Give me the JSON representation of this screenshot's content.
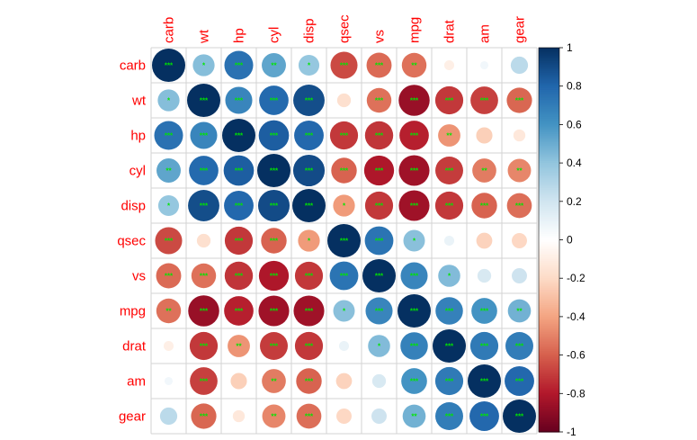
{
  "chart_data": {
    "type": "heatmap",
    "variables": [
      "carb",
      "wt",
      "hp",
      "cyl",
      "disp",
      "qsec",
      "vs",
      "mpg",
      "drat",
      "am",
      "gear"
    ],
    "matrix": [
      [
        1.0,
        0.43,
        0.75,
        0.53,
        0.39,
        -0.66,
        -0.57,
        -0.55,
        -0.09,
        0.06,
        0.27
      ],
      [
        0.43,
        1.0,
        0.66,
        0.78,
        0.89,
        -0.17,
        -0.55,
        -0.87,
        -0.71,
        -0.69,
        -0.58
      ],
      [
        0.75,
        0.66,
        1.0,
        0.83,
        0.79,
        -0.71,
        -0.72,
        -0.78,
        -0.45,
        -0.24,
        -0.13
      ],
      [
        0.53,
        0.78,
        0.83,
        1.0,
        0.9,
        -0.59,
        -0.81,
        -0.85,
        -0.7,
        -0.52,
        -0.49
      ],
      [
        0.39,
        0.89,
        0.79,
        0.9,
        1.0,
        -0.43,
        -0.71,
        -0.85,
        -0.71,
        -0.59,
        -0.56
      ],
      [
        -0.66,
        -0.17,
        -0.71,
        -0.59,
        -0.43,
        1.0,
        0.74,
        0.42,
        0.09,
        -0.23,
        -0.21
      ],
      [
        -0.57,
        -0.55,
        -0.72,
        -0.81,
        -0.71,
        0.74,
        1.0,
        0.66,
        0.44,
        0.17,
        0.21
      ],
      [
        -0.55,
        -0.87,
        -0.78,
        -0.85,
        -0.85,
        0.42,
        0.66,
        1.0,
        0.68,
        0.6,
        0.48
      ],
      [
        -0.09,
        -0.71,
        -0.45,
        -0.7,
        -0.71,
        0.09,
        0.44,
        0.68,
        1.0,
        0.71,
        0.7
      ],
      [
        0.06,
        -0.69,
        -0.24,
        -0.52,
        -0.59,
        -0.23,
        0.17,
        0.6,
        0.71,
        1.0,
        0.79
      ],
      [
        0.27,
        -0.58,
        -0.13,
        -0.49,
        -0.56,
        -0.21,
        0.21,
        0.48,
        0.7,
        0.79,
        1.0
      ]
    ],
    "significance": [
      [
        "***",
        "*",
        "***",
        "**",
        "*",
        "***",
        "***",
        "**",
        "",
        "",
        ""
      ],
      [
        "*",
        "***",
        "***",
        "***",
        "***",
        "",
        "***",
        "***",
        "***",
        "***",
        "***"
      ],
      [
        "***",
        "***",
        "***",
        "***",
        "***",
        "***",
        "***",
        "***",
        "**",
        "",
        ""
      ],
      [
        "**",
        "***",
        "***",
        "***",
        "***",
        "***",
        "***",
        "***",
        "***",
        "**",
        "**"
      ],
      [
        "*",
        "***",
        "***",
        "***",
        "***",
        "*",
        "***",
        "***",
        "***",
        "***",
        "***"
      ],
      [
        "***",
        "",
        "***",
        "***",
        "*",
        "***",
        "***",
        "*",
        "",
        "",
        ""
      ],
      [
        "***",
        "***",
        "***",
        "***",
        "***",
        "***",
        "***",
        "***",
        "*",
        "",
        ""
      ],
      [
        "**",
        "***",
        "***",
        "***",
        "***",
        "*",
        "***",
        "***",
        "***",
        "***",
        "**"
      ],
      [
        "",
        "***",
        "**",
        "***",
        "***",
        "",
        "*",
        "***",
        "***",
        "***",
        "***"
      ],
      [
        "",
        "***",
        "",
        "**",
        "***",
        "",
        "",
        "***",
        "***",
        "***",
        "***"
      ],
      [
        "",
        "***",
        "",
        "**",
        "***",
        "",
        "",
        "**",
        "***",
        "***",
        "***"
      ]
    ],
    "colorbar": {
      "range": [
        -1,
        1
      ],
      "ticks": [
        "1",
        "0.8",
        "0.6",
        "0.4",
        "0.2",
        "0",
        "-0.2",
        "-0.4",
        "-0.6",
        "-0.8",
        "-1"
      ]
    },
    "colors": {
      "label": "#ff0000",
      "significance": "#00e600",
      "grid": "#d3d3d3",
      "scale": [
        "#67001f",
        "#b2182b",
        "#d6604d",
        "#f4a582",
        "#fddbc7",
        "#ffffff",
        "#d1e5f0",
        "#92c5de",
        "#4393c3",
        "#2166ac",
        "#053061"
      ]
    },
    "grid": true,
    "legend": "right"
  }
}
